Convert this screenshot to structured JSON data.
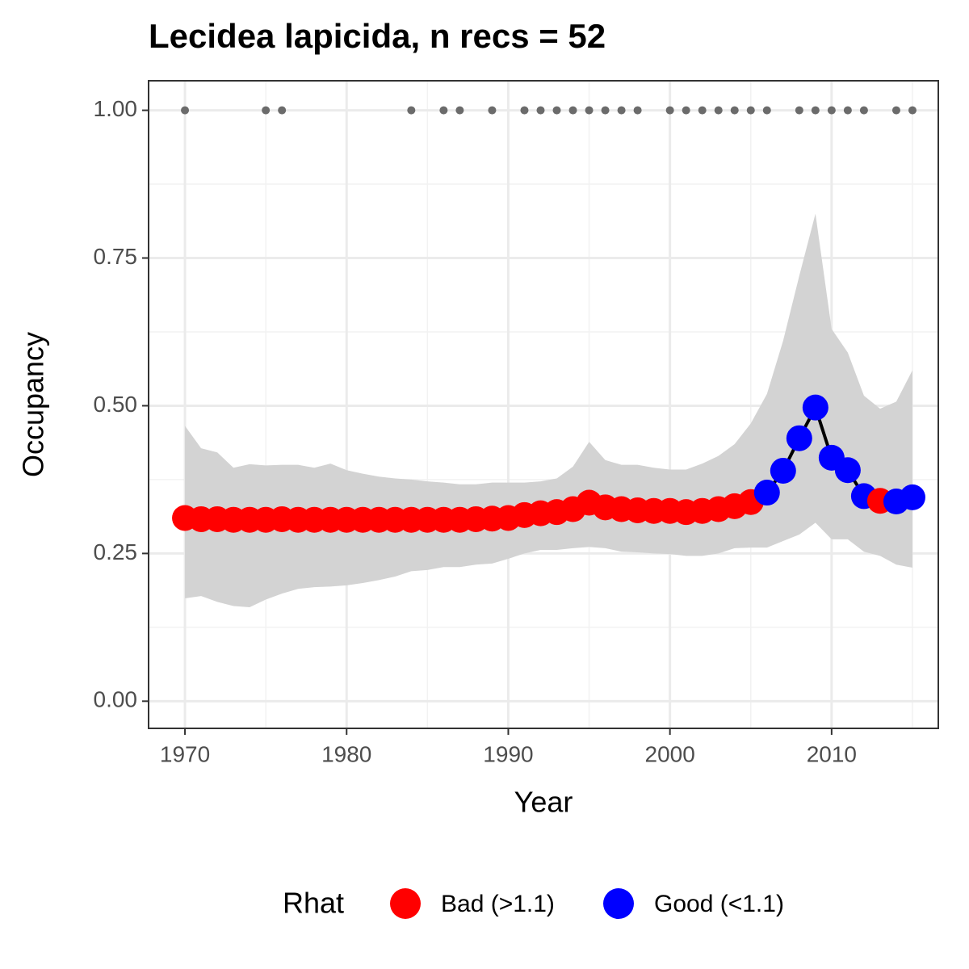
{
  "chart_data": {
    "type": "line",
    "title": "Lecidea lapicida, n recs = 52",
    "x_label": "Year",
    "y_label": "Occupancy",
    "x": [
      1970,
      1971,
      1972,
      1973,
      1974,
      1975,
      1976,
      1977,
      1978,
      1979,
      1980,
      1981,
      1982,
      1983,
      1984,
      1985,
      1986,
      1987,
      1988,
      1989,
      1990,
      1991,
      1992,
      1993,
      1994,
      1995,
      1996,
      1997,
      1998,
      1999,
      2000,
      2001,
      2002,
      2003,
      2004,
      2005,
      2006,
      2007,
      2008,
      2009,
      2010,
      2011,
      2012,
      2013,
      2014,
      2015
    ],
    "values": [
      0.31,
      0.308,
      0.308,
      0.307,
      0.307,
      0.307,
      0.308,
      0.307,
      0.307,
      0.307,
      0.307,
      0.307,
      0.307,
      0.307,
      0.307,
      0.307,
      0.307,
      0.307,
      0.308,
      0.309,
      0.31,
      0.315,
      0.318,
      0.32,
      0.325,
      0.336,
      0.328,
      0.325,
      0.323,
      0.322,
      0.322,
      0.32,
      0.322,
      0.325,
      0.33,
      0.337,
      0.353,
      0.39,
      0.445,
      0.497,
      0.412,
      0.391,
      0.347,
      0.339,
      0.338,
      0.345
    ],
    "rhat": [
      "Bad (>1.1)",
      "Bad (>1.1)",
      "Bad (>1.1)",
      "Bad (>1.1)",
      "Bad (>1.1)",
      "Bad (>1.1)",
      "Bad (>1.1)",
      "Bad (>1.1)",
      "Bad (>1.1)",
      "Bad (>1.1)",
      "Bad (>1.1)",
      "Bad (>1.1)",
      "Bad (>1.1)",
      "Bad (>1.1)",
      "Bad (>1.1)",
      "Bad (>1.1)",
      "Bad (>1.1)",
      "Bad (>1.1)",
      "Bad (>1.1)",
      "Bad (>1.1)",
      "Bad (>1.1)",
      "Bad (>1.1)",
      "Bad (>1.1)",
      "Bad (>1.1)",
      "Bad (>1.1)",
      "Bad (>1.1)",
      "Bad (>1.1)",
      "Bad (>1.1)",
      "Bad (>1.1)",
      "Bad (>1.1)",
      "Bad (>1.1)",
      "Bad (>1.1)",
      "Bad (>1.1)",
      "Bad (>1.1)",
      "Bad (>1.1)",
      "Bad (>1.1)",
      "Good (<1.1)",
      "Good (<1.1)",
      "Good (<1.1)",
      "Good (<1.1)",
      "Good (<1.1)",
      "Good (<1.1)",
      "Good (<1.1)",
      "Bad (>1.1)",
      "Good (<1.1)",
      "Good (<1.1)"
    ],
    "lower": [
      0.174,
      0.178,
      0.168,
      0.161,
      0.159,
      0.172,
      0.182,
      0.19,
      0.193,
      0.194,
      0.196,
      0.2,
      0.205,
      0.211,
      0.22,
      0.222,
      0.227,
      0.227,
      0.231,
      0.233,
      0.241,
      0.25,
      0.256,
      0.256,
      0.259,
      0.261,
      0.259,
      0.253,
      0.252,
      0.25,
      0.249,
      0.246,
      0.246,
      0.25,
      0.259,
      0.26,
      0.26,
      0.271,
      0.282,
      0.302,
      0.274,
      0.274,
      0.253,
      0.246,
      0.231,
      0.226
    ],
    "upper": [
      0.466,
      0.428,
      0.421,
      0.395,
      0.401,
      0.399,
      0.4,
      0.4,
      0.395,
      0.402,
      0.391,
      0.385,
      0.38,
      0.377,
      0.375,
      0.372,
      0.37,
      0.367,
      0.367,
      0.37,
      0.37,
      0.37,
      0.372,
      0.377,
      0.397,
      0.439,
      0.408,
      0.4,
      0.4,
      0.395,
      0.392,
      0.392,
      0.402,
      0.415,
      0.435,
      0.47,
      0.52,
      0.61,
      0.72,
      0.825,
      0.63,
      0.59,
      0.517,
      0.495,
      0.507,
      0.56
    ],
    "band_color": "#d3d3d3",
    "line_color": "#000000",
    "records": {
      "color": "#6b6b6b",
      "x": [
        1970,
        1975,
        1976,
        1984,
        1986,
        1987,
        1989,
        1991,
        1992,
        1993,
        1994,
        1995,
        1996,
        1997,
        1998,
        2000,
        2001,
        2002,
        2003,
        2004,
        2005,
        2006,
        2008,
        2009,
        2010,
        2011,
        2012,
        2014,
        2015
      ],
      "values": [
        1,
        1,
        1,
        1,
        1,
        1,
        1,
        1,
        1,
        1,
        1,
        1,
        1,
        1,
        1,
        1,
        1,
        1,
        1,
        1,
        1,
        1,
        1,
        1,
        1,
        1,
        1,
        1,
        1
      ]
    },
    "legend": {
      "title": "Rhat",
      "position": "bottom",
      "items": [
        {
          "name": "Bad (>1.1)",
          "color": "#ff0000"
        },
        {
          "name": "Good (<1.1)",
          "color": "#0000ff"
        }
      ]
    },
    "xlim": [
      1967.75,
      2016.6
    ],
    "xticks": [
      1970,
      1980,
      1990,
      2000,
      2010
    ],
    "ylim": [
      -0.046,
      1.05
    ],
    "yticks": [
      {
        "value": 0,
        "label": "0.00"
      },
      {
        "value": 0.25,
        "label": "0.25"
      },
      {
        "value": 0.5,
        "label": "0.50"
      },
      {
        "value": 0.75,
        "label": "0.75"
      },
      {
        "value": 1,
        "label": "1.00"
      }
    ],
    "grid": true
  }
}
